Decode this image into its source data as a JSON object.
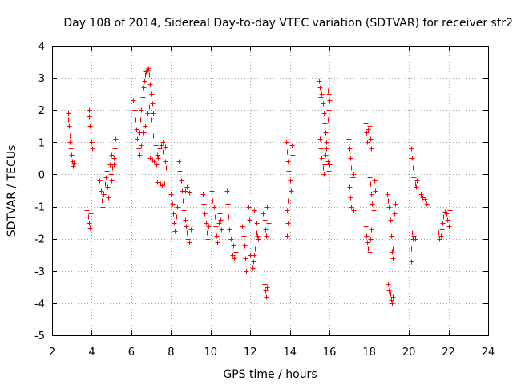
{
  "chart_data": {
    "type": "scatter",
    "title": "Day 108 of 2014, Sidereal Day-to-day VTEC variation (SDTVAR) for receiver str2",
    "xlabel": "GPS time / hours",
    "ylabel": "SDTVAR / TECUs",
    "xlim": [
      2,
      24
    ],
    "ylim": [
      -5,
      4
    ],
    "grid": true,
    "marker": "+",
    "marker_color": "#ff0000",
    "x_ticks": [
      "2",
      "4",
      "6",
      "8",
      "10",
      "12",
      "14",
      "16",
      "18",
      "20",
      "22",
      "24"
    ],
    "y_ticks": [
      "-5",
      "-4",
      "-3",
      "-2",
      "-1",
      "0",
      "1",
      "2",
      "3",
      "4"
    ],
    "series": [
      {
        "name": "str2",
        "points": [
          [
            2.8,
            1.9
          ],
          [
            2.82,
            1.7
          ],
          [
            2.85,
            1.5
          ],
          [
            2.88,
            1.2
          ],
          [
            2.9,
            1.0
          ],
          [
            2.93,
            0.8
          ],
          [
            2.96,
            0.6
          ],
          [
            3.0,
            0.4
          ],
          [
            3.05,
            0.25
          ],
          [
            3.08,
            0.35
          ],
          [
            3.75,
            -1.1
          ],
          [
            3.8,
            -1.3
          ],
          [
            3.85,
            -1.5
          ],
          [
            3.9,
            -1.65
          ],
          [
            3.95,
            -1.2
          ],
          [
            3.85,
            2.0
          ],
          [
            3.88,
            1.8
          ],
          [
            3.92,
            1.5
          ],
          [
            3.96,
            1.2
          ],
          [
            4.0,
            1.0
          ],
          [
            4.02,
            0.8
          ],
          [
            4.4,
            -0.2
          ],
          [
            4.45,
            -0.5
          ],
          [
            4.5,
            -0.8
          ],
          [
            4.55,
            -1.0
          ],
          [
            4.6,
            -0.6
          ],
          [
            4.65,
            -0.3
          ],
          [
            4.7,
            -0.1
          ],
          [
            4.75,
            0.1
          ],
          [
            4.8,
            -0.4
          ],
          [
            4.85,
            -0.7
          ],
          [
            4.9,
            0.3
          ],
          [
            4.95,
            0.0
          ],
          [
            5.0,
            -0.2
          ],
          [
            5.05,
            0.2
          ],
          [
            5.1,
            0.5
          ],
          [
            5.15,
            0.8
          ],
          [
            5.2,
            1.1
          ],
          [
            5.1,
            0.3
          ],
          [
            5.0,
            0.6
          ],
          [
            6.1,
            2.3
          ],
          [
            6.15,
            2.0
          ],
          [
            6.2,
            1.7
          ],
          [
            6.25,
            1.4
          ],
          [
            6.3,
            1.1
          ],
          [
            6.35,
            0.8
          ],
          [
            6.4,
            1.3
          ],
          [
            6.45,
            1.7
          ],
          [
            6.5,
            2.0
          ],
          [
            6.55,
            2.4
          ],
          [
            6.6,
            2.7
          ],
          [
            6.65,
            2.9
          ],
          [
            6.7,
            3.1
          ],
          [
            6.75,
            3.2
          ],
          [
            6.8,
            3.25
          ],
          [
            6.85,
            3.3
          ],
          [
            6.9,
            3.1
          ],
          [
            6.95,
            2.8
          ],
          [
            7.0,
            2.5
          ],
          [
            7.05,
            2.2
          ],
          [
            7.1,
            1.9
          ],
          [
            6.4,
            0.6
          ],
          [
            6.5,
            0.9
          ],
          [
            6.6,
            1.3
          ],
          [
            6.7,
            1.5
          ],
          [
            6.8,
            1.9
          ],
          [
            6.9,
            2.1
          ],
          [
            7.0,
            1.7
          ],
          [
            7.1,
            1.2
          ],
          [
            7.2,
            0.9
          ],
          [
            7.3,
            0.6
          ],
          [
            6.95,
            0.5
          ],
          [
            7.05,
            0.45
          ],
          [
            7.15,
            0.4
          ],
          [
            7.25,
            0.3
          ],
          [
            7.35,
            0.5
          ],
          [
            7.4,
            0.8
          ],
          [
            7.5,
            0.9
          ],
          [
            7.6,
            0.7
          ],
          [
            7.7,
            0.4
          ],
          [
            7.75,
            0.2
          ],
          [
            7.3,
            -0.25
          ],
          [
            7.45,
            -0.3
          ],
          [
            7.55,
            -0.35
          ],
          [
            7.65,
            -0.3
          ],
          [
            7.6,
            1.0
          ],
          [
            7.7,
            0.85
          ],
          [
            8.0,
            -0.6
          ],
          [
            8.05,
            -0.9
          ],
          [
            8.1,
            -1.2
          ],
          [
            8.15,
            -1.5
          ],
          [
            8.2,
            -1.75
          ],
          [
            8.25,
            -1.3
          ],
          [
            8.3,
            -1.0
          ],
          [
            8.4,
            0.4
          ],
          [
            8.45,
            0.1
          ],
          [
            8.5,
            -0.2
          ],
          [
            8.55,
            -0.5
          ],
          [
            8.6,
            -0.8
          ],
          [
            8.65,
            -1.1
          ],
          [
            8.7,
            -1.4
          ],
          [
            8.75,
            -1.6
          ],
          [
            8.8,
            -1.8
          ],
          [
            8.85,
            -2.0
          ],
          [
            8.9,
            -2.1
          ],
          [
            8.7,
            -0.5
          ],
          [
            8.8,
            -0.4
          ],
          [
            8.9,
            -0.55
          ],
          [
            9.0,
            -1.7
          ],
          [
            9.6,
            -0.6
          ],
          [
            9.65,
            -0.9
          ],
          [
            9.7,
            -1.2
          ],
          [
            9.75,
            -1.5
          ],
          [
            9.8,
            -1.8
          ],
          [
            9.85,
            -2.0
          ],
          [
            9.9,
            -1.6
          ],
          [
            10.05,
            -0.5
          ],
          [
            10.1,
            -0.8
          ],
          [
            10.15,
            -1.0
          ],
          [
            10.2,
            -1.3
          ],
          [
            10.25,
            -1.6
          ],
          [
            10.3,
            -1.9
          ],
          [
            10.35,
            -2.1
          ],
          [
            10.4,
            -1.5
          ],
          [
            10.45,
            -1.2
          ],
          [
            10.5,
            -1.4
          ],
          [
            10.55,
            -1.7
          ],
          [
            10.8,
            -0.5
          ],
          [
            10.85,
            -0.9
          ],
          [
            10.9,
            -1.3
          ],
          [
            10.95,
            -1.7
          ],
          [
            11.0,
            -2.0
          ],
          [
            11.05,
            -2.3
          ],
          [
            11.1,
            -2.5
          ],
          [
            11.15,
            -2.2
          ],
          [
            11.2,
            -2.6
          ],
          [
            11.25,
            -2.4
          ],
          [
            11.6,
            -1.6
          ],
          [
            11.65,
            -1.9
          ],
          [
            11.7,
            -2.2
          ],
          [
            11.75,
            -2.6
          ],
          [
            11.8,
            -3.0
          ],
          [
            11.85,
            -1.3
          ],
          [
            11.9,
            -1.0
          ],
          [
            11.95,
            -1.4
          ],
          [
            12.0,
            -2.5
          ],
          [
            12.05,
            -2.8
          ],
          [
            12.1,
            -2.9
          ],
          [
            12.15,
            -2.7
          ],
          [
            12.2,
            -2.5
          ],
          [
            12.25,
            -2.3
          ],
          [
            12.3,
            -1.8
          ],
          [
            12.35,
            -1.9
          ],
          [
            12.4,
            -2.0
          ],
          [
            12.2,
            -1.1
          ],
          [
            12.3,
            -1.5
          ],
          [
            12.65,
            -1.2
          ],
          [
            12.7,
            -1.4
          ],
          [
            12.75,
            -1.7
          ],
          [
            12.8,
            -1.9
          ],
          [
            12.85,
            -1.0
          ],
          [
            12.9,
            -1.5
          ],
          [
            12.7,
            -3.4
          ],
          [
            12.75,
            -3.6
          ],
          [
            12.8,
            -3.8
          ],
          [
            12.85,
            -3.5
          ],
          [
            13.8,
            1.0
          ],
          [
            13.85,
            0.7
          ],
          [
            13.9,
            0.4
          ],
          [
            13.95,
            0.1
          ],
          [
            14.0,
            -0.2
          ],
          [
            14.05,
            -0.5
          ],
          [
            13.9,
            -0.8
          ],
          [
            13.85,
            -1.1
          ],
          [
            13.9,
            -1.5
          ],
          [
            13.85,
            -1.9
          ],
          [
            14.1,
            0.9
          ],
          [
            14.15,
            0.6
          ],
          [
            15.45,
            2.9
          ],
          [
            15.5,
            2.7
          ],
          [
            15.55,
            2.4
          ],
          [
            15.6,
            2.5
          ],
          [
            15.65,
            2.2
          ],
          [
            15.7,
            1.9
          ],
          [
            15.75,
            1.6
          ],
          [
            15.8,
            1.3
          ],
          [
            15.85,
            1.0
          ],
          [
            15.9,
            1.7
          ],
          [
            15.95,
            2.0
          ],
          [
            16.0,
            2.3
          ],
          [
            15.5,
            1.1
          ],
          [
            15.55,
            0.8
          ],
          [
            15.6,
            0.5
          ],
          [
            15.65,
            0.2
          ],
          [
            15.7,
            0.0
          ],
          [
            15.75,
            0.3
          ],
          [
            15.8,
            0.6
          ],
          [
            15.85,
            0.8
          ],
          [
            15.9,
            0.4
          ],
          [
            15.95,
            0.1
          ],
          [
            16.0,
            0.3
          ],
          [
            15.9,
            2.6
          ],
          [
            15.95,
            2.5
          ],
          [
            16.95,
            1.1
          ],
          [
            17.0,
            0.8
          ],
          [
            17.05,
            0.5
          ],
          [
            17.1,
            0.2
          ],
          [
            17.15,
            -0.1
          ],
          [
            17.0,
            -0.4
          ],
          [
            17.05,
            -0.7
          ],
          [
            17.1,
            -1.0
          ],
          [
            17.15,
            -1.3
          ],
          [
            17.2,
            -1.1
          ],
          [
            17.2,
            0.0
          ],
          [
            17.8,
            1.6
          ],
          [
            17.85,
            1.3
          ],
          [
            17.9,
            1.0
          ],
          [
            17.95,
            1.4
          ],
          [
            18.0,
            1.5
          ],
          [
            18.05,
            1.1
          ],
          [
            18.1,
            0.8
          ],
          [
            17.8,
            -1.6
          ],
          [
            17.85,
            -1.9
          ],
          [
            17.9,
            -2.1
          ],
          [
            17.95,
            -2.3
          ],
          [
            18.0,
            -2.4
          ],
          [
            18.05,
            -2.0
          ],
          [
            18.1,
            -1.7
          ],
          [
            18.0,
            -0.1
          ],
          [
            18.05,
            -0.3
          ],
          [
            18.1,
            -0.6
          ],
          [
            18.15,
            -0.9
          ],
          [
            18.2,
            -1.1
          ],
          [
            18.25,
            -0.2
          ],
          [
            18.3,
            -0.5
          ],
          [
            18.9,
            -0.6
          ],
          [
            18.95,
            -0.8
          ],
          [
            19.0,
            -1.0
          ],
          [
            19.05,
            -1.4
          ],
          [
            19.1,
            -1.9
          ],
          [
            19.15,
            -2.4
          ],
          [
            19.2,
            -2.6
          ],
          [
            19.25,
            -1.2
          ],
          [
            19.3,
            -0.9
          ],
          [
            19.2,
            -2.3
          ],
          [
            18.95,
            -3.4
          ],
          [
            19.0,
            -3.6
          ],
          [
            19.05,
            -3.7
          ],
          [
            19.1,
            -3.9
          ],
          [
            19.15,
            -4.0
          ],
          [
            19.2,
            -3.8
          ],
          [
            20.1,
            0.8
          ],
          [
            20.15,
            0.5
          ],
          [
            20.2,
            0.2
          ],
          [
            20.25,
            -0.1
          ],
          [
            20.3,
            -0.3
          ],
          [
            20.35,
            -0.4
          ],
          [
            20.4,
            -0.2
          ],
          [
            20.45,
            -0.3
          ],
          [
            20.15,
            -1.8
          ],
          [
            20.2,
            -2.0
          ],
          [
            20.25,
            -1.9
          ],
          [
            20.3,
            -2.0
          ],
          [
            20.1,
            -2.3
          ],
          [
            20.1,
            -2.7
          ],
          [
            20.6,
            -0.6
          ],
          [
            20.7,
            -0.7
          ],
          [
            20.8,
            -0.75
          ],
          [
            20.9,
            -0.9
          ],
          [
            21.5,
            -1.8
          ],
          [
            21.55,
            -2.0
          ],
          [
            21.6,
            -1.9
          ],
          [
            21.65,
            -1.7
          ],
          [
            21.7,
            -1.5
          ],
          [
            21.75,
            -1.3
          ],
          [
            21.8,
            -1.15
          ],
          [
            21.85,
            -1.05
          ],
          [
            21.9,
            -1.2
          ],
          [
            21.95,
            -1.4
          ],
          [
            22.0,
            -1.6
          ],
          [
            22.05,
            -1.1
          ]
        ]
      }
    ]
  }
}
